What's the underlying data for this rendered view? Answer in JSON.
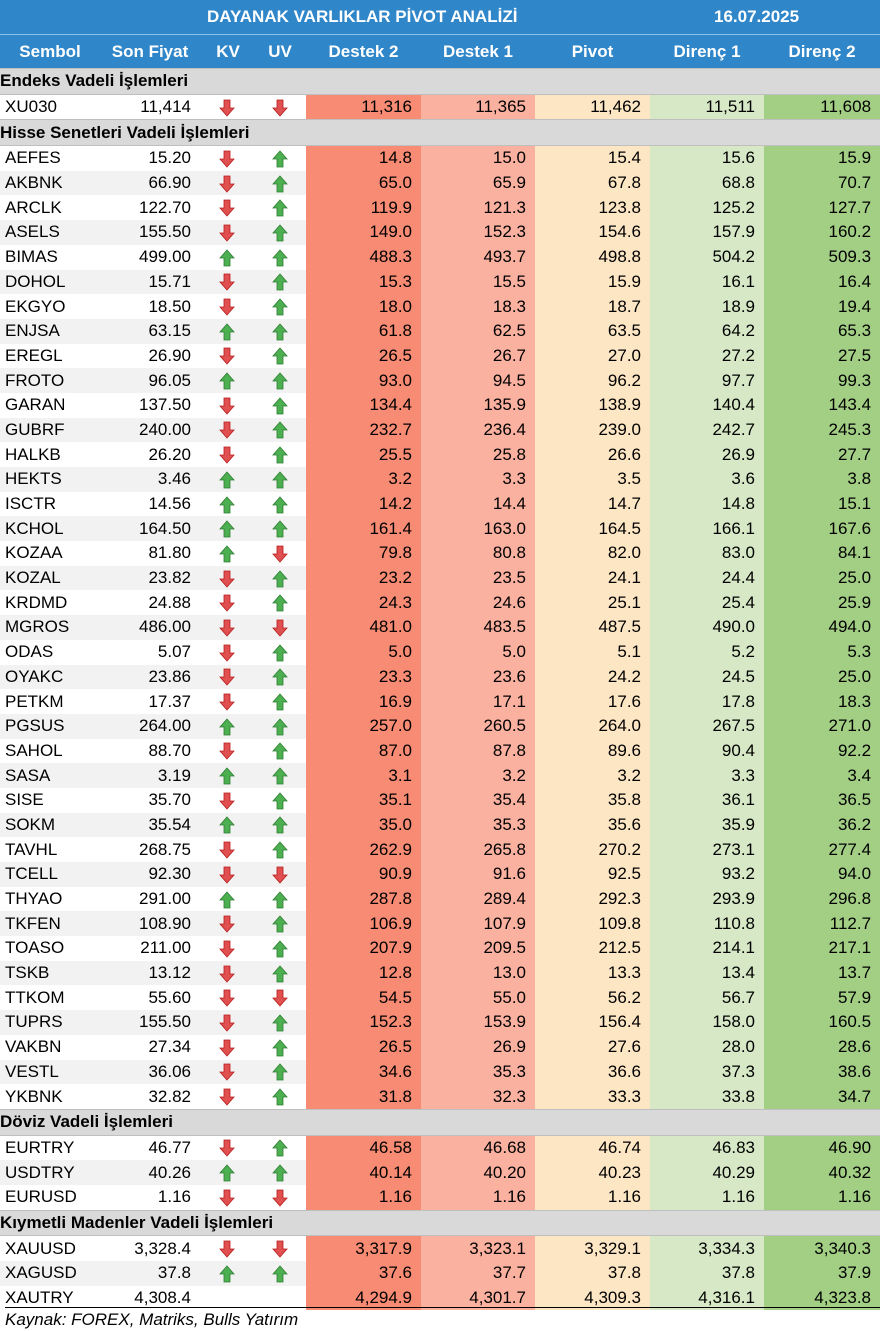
{
  "header": {
    "title": "DAYANAK VARLIKLAR PİVOT ANALİZİ",
    "date": "16.07.2025"
  },
  "columns": [
    "Sembol",
    "Son Fiyat",
    "KV",
    "UV",
    "Destek 2",
    "Destek 1",
    "Pivot",
    "Direnç 1",
    "Direnç 2"
  ],
  "colors": {
    "header_bg": "#2f86c9",
    "destek2": "#f78b73",
    "destek1": "#fbb1a0",
    "pivot": "#fde6c4",
    "direnc1": "#d6e8c6",
    "direnc2": "#a3cf85",
    "arrow_up": "#4caf50",
    "arrow_down": "#e05050"
  },
  "sections": [
    {
      "title": "Endeks Vadeli İşlemleri",
      "rows": [
        {
          "symbol": "XU030",
          "price": "11,414",
          "kv": "down",
          "uv": "down",
          "d2": "11,316",
          "d1": "11,365",
          "pivot": "11,462",
          "r1": "11,511",
          "r2": "11,608"
        }
      ]
    },
    {
      "title": "Hisse Senetleri Vadeli İşlemleri",
      "rows": [
        {
          "symbol": "AEFES",
          "price": "15.20",
          "kv": "down",
          "uv": "up",
          "d2": "14.8",
          "d1": "15.0",
          "pivot": "15.4",
          "r1": "15.6",
          "r2": "15.9"
        },
        {
          "symbol": "AKBNK",
          "price": "66.90",
          "kv": "down",
          "uv": "up",
          "d2": "65.0",
          "d1": "65.9",
          "pivot": "67.8",
          "r1": "68.8",
          "r2": "70.7"
        },
        {
          "symbol": "ARCLK",
          "price": "122.70",
          "kv": "down",
          "uv": "up",
          "d2": "119.9",
          "d1": "121.3",
          "pivot": "123.8",
          "r1": "125.2",
          "r2": "127.7"
        },
        {
          "symbol": "ASELS",
          "price": "155.50",
          "kv": "down",
          "uv": "up",
          "d2": "149.0",
          "d1": "152.3",
          "pivot": "154.6",
          "r1": "157.9",
          "r2": "160.2"
        },
        {
          "symbol": "BIMAS",
          "price": "499.00",
          "kv": "up",
          "uv": "up",
          "d2": "488.3",
          "d1": "493.7",
          "pivot": "498.8",
          "r1": "504.2",
          "r2": "509.3"
        },
        {
          "symbol": "DOHOL",
          "price": "15.71",
          "kv": "down",
          "uv": "up",
          "d2": "15.3",
          "d1": "15.5",
          "pivot": "15.9",
          "r1": "16.1",
          "r2": "16.4"
        },
        {
          "symbol": "EKGYO",
          "price": "18.50",
          "kv": "down",
          "uv": "up",
          "d2": "18.0",
          "d1": "18.3",
          "pivot": "18.7",
          "r1": "18.9",
          "r2": "19.4"
        },
        {
          "symbol": "ENJSA",
          "price": "63.15",
          "kv": "up",
          "uv": "up",
          "d2": "61.8",
          "d1": "62.5",
          "pivot": "63.5",
          "r1": "64.2",
          "r2": "65.3"
        },
        {
          "symbol": "EREGL",
          "price": "26.90",
          "kv": "down",
          "uv": "up",
          "d2": "26.5",
          "d1": "26.7",
          "pivot": "27.0",
          "r1": "27.2",
          "r2": "27.5"
        },
        {
          "symbol": "FROTO",
          "price": "96.05",
          "kv": "up",
          "uv": "up",
          "d2": "93.0",
          "d1": "94.5",
          "pivot": "96.2",
          "r1": "97.7",
          "r2": "99.3"
        },
        {
          "symbol": "GARAN",
          "price": "137.50",
          "kv": "down",
          "uv": "up",
          "d2": "134.4",
          "d1": "135.9",
          "pivot": "138.9",
          "r1": "140.4",
          "r2": "143.4"
        },
        {
          "symbol": "GUBRF",
          "price": "240.00",
          "kv": "down",
          "uv": "up",
          "d2": "232.7",
          "d1": "236.4",
          "pivot": "239.0",
          "r1": "242.7",
          "r2": "245.3"
        },
        {
          "symbol": "HALKB",
          "price": "26.20",
          "kv": "down",
          "uv": "up",
          "d2": "25.5",
          "d1": "25.8",
          "pivot": "26.6",
          "r1": "26.9",
          "r2": "27.7"
        },
        {
          "symbol": "HEKTS",
          "price": "3.46",
          "kv": "up",
          "uv": "up",
          "d2": "3.2",
          "d1": "3.3",
          "pivot": "3.5",
          "r1": "3.6",
          "r2": "3.8"
        },
        {
          "symbol": "ISCTR",
          "price": "14.56",
          "kv": "up",
          "uv": "up",
          "d2": "14.2",
          "d1": "14.4",
          "pivot": "14.7",
          "r1": "14.8",
          "r2": "15.1"
        },
        {
          "symbol": "KCHOL",
          "price": "164.50",
          "kv": "up",
          "uv": "up",
          "d2": "161.4",
          "d1": "163.0",
          "pivot": "164.5",
          "r1": "166.1",
          "r2": "167.6"
        },
        {
          "symbol": "KOZAA",
          "price": "81.80",
          "kv": "up",
          "uv": "down",
          "d2": "79.8",
          "d1": "80.8",
          "pivot": "82.0",
          "r1": "83.0",
          "r2": "84.1"
        },
        {
          "symbol": "KOZAL",
          "price": "23.82",
          "kv": "down",
          "uv": "up",
          "d2": "23.2",
          "d1": "23.5",
          "pivot": "24.1",
          "r1": "24.4",
          "r2": "25.0"
        },
        {
          "symbol": "KRDMD",
          "price": "24.88",
          "kv": "down",
          "uv": "up",
          "d2": "24.3",
          "d1": "24.6",
          "pivot": "25.1",
          "r1": "25.4",
          "r2": "25.9"
        },
        {
          "symbol": "MGROS",
          "price": "486.00",
          "kv": "down",
          "uv": "down",
          "d2": "481.0",
          "d1": "483.5",
          "pivot": "487.5",
          "r1": "490.0",
          "r2": "494.0"
        },
        {
          "symbol": "ODAS",
          "price": "5.07",
          "kv": "down",
          "uv": "up",
          "d2": "5.0",
          "d1": "5.0",
          "pivot": "5.1",
          "r1": "5.2",
          "r2": "5.3"
        },
        {
          "symbol": "OYAKC",
          "price": "23.86",
          "kv": "down",
          "uv": "up",
          "d2": "23.3",
          "d1": "23.6",
          "pivot": "24.2",
          "r1": "24.5",
          "r2": "25.0"
        },
        {
          "symbol": "PETKM",
          "price": "17.37",
          "kv": "down",
          "uv": "up",
          "d2": "16.9",
          "d1": "17.1",
          "pivot": "17.6",
          "r1": "17.8",
          "r2": "18.3"
        },
        {
          "symbol": "PGSUS",
          "price": "264.00",
          "kv": "up",
          "uv": "up",
          "d2": "257.0",
          "d1": "260.5",
          "pivot": "264.0",
          "r1": "267.5",
          "r2": "271.0"
        },
        {
          "symbol": "SAHOL",
          "price": "88.70",
          "kv": "down",
          "uv": "up",
          "d2": "87.0",
          "d1": "87.8",
          "pivot": "89.6",
          "r1": "90.4",
          "r2": "92.2"
        },
        {
          "symbol": "SASA",
          "price": "3.19",
          "kv": "up",
          "uv": "up",
          "d2": "3.1",
          "d1": "3.2",
          "pivot": "3.2",
          "r1": "3.3",
          "r2": "3.4"
        },
        {
          "symbol": "SISE",
          "price": "35.70",
          "kv": "down",
          "uv": "up",
          "d2": "35.1",
          "d1": "35.4",
          "pivot": "35.8",
          "r1": "36.1",
          "r2": "36.5"
        },
        {
          "symbol": "SOKM",
          "price": "35.54",
          "kv": "up",
          "uv": "up",
          "d2": "35.0",
          "d1": "35.3",
          "pivot": "35.6",
          "r1": "35.9",
          "r2": "36.2"
        },
        {
          "symbol": "TAVHL",
          "price": "268.75",
          "kv": "down",
          "uv": "up",
          "d2": "262.9",
          "d1": "265.8",
          "pivot": "270.2",
          "r1": "273.1",
          "r2": "277.4"
        },
        {
          "symbol": "TCELL",
          "price": "92.30",
          "kv": "down",
          "uv": "down",
          "d2": "90.9",
          "d1": "91.6",
          "pivot": "92.5",
          "r1": "93.2",
          "r2": "94.0"
        },
        {
          "symbol": "THYAO",
          "price": "291.00",
          "kv": "up",
          "uv": "up",
          "d2": "287.8",
          "d1": "289.4",
          "pivot": "292.3",
          "r1": "293.9",
          "r2": "296.8"
        },
        {
          "symbol": "TKFEN",
          "price": "108.90",
          "kv": "down",
          "uv": "up",
          "d2": "106.9",
          "d1": "107.9",
          "pivot": "109.8",
          "r1": "110.8",
          "r2": "112.7"
        },
        {
          "symbol": "TOASO",
          "price": "211.00",
          "kv": "down",
          "uv": "up",
          "d2": "207.9",
          "d1": "209.5",
          "pivot": "212.5",
          "r1": "214.1",
          "r2": "217.1"
        },
        {
          "symbol": "TSKB",
          "price": "13.12",
          "kv": "down",
          "uv": "up",
          "d2": "12.8",
          "d1": "13.0",
          "pivot": "13.3",
          "r1": "13.4",
          "r2": "13.7"
        },
        {
          "symbol": "TTKOM",
          "price": "55.60",
          "kv": "down",
          "uv": "down",
          "d2": "54.5",
          "d1": "55.0",
          "pivot": "56.2",
          "r1": "56.7",
          "r2": "57.9"
        },
        {
          "symbol": "TUPRS",
          "price": "155.50",
          "kv": "down",
          "uv": "up",
          "d2": "152.3",
          "d1": "153.9",
          "pivot": "156.4",
          "r1": "158.0",
          "r2": "160.5"
        },
        {
          "symbol": "VAKBN",
          "price": "27.34",
          "kv": "down",
          "uv": "up",
          "d2": "26.5",
          "d1": "26.9",
          "pivot": "27.6",
          "r1": "28.0",
          "r2": "28.6"
        },
        {
          "symbol": "VESTL",
          "price": "36.06",
          "kv": "down",
          "uv": "up",
          "d2": "34.6",
          "d1": "35.3",
          "pivot": "36.6",
          "r1": "37.3",
          "r2": "38.6"
        },
        {
          "symbol": "YKBNK",
          "price": "32.82",
          "kv": "down",
          "uv": "up",
          "d2": "31.8",
          "d1": "32.3",
          "pivot": "33.3",
          "r1": "33.8",
          "r2": "34.7"
        }
      ]
    },
    {
      "title": "Döviz Vadeli İşlemleri",
      "rows": [
        {
          "symbol": "EURTRY",
          "price": "46.77",
          "kv": "down",
          "uv": "up",
          "d2": "46.58",
          "d1": "46.68",
          "pivot": "46.74",
          "r1": "46.83",
          "r2": "46.90"
        },
        {
          "symbol": "USDTRY",
          "price": "40.26",
          "kv": "up",
          "uv": "up",
          "d2": "40.14",
          "d1": "40.20",
          "pivot": "40.23",
          "r1": "40.29",
          "r2": "40.32"
        },
        {
          "symbol": "EURUSD",
          "price": "1.16",
          "kv": "down",
          "uv": "down",
          "d2": "1.16",
          "d1": "1.16",
          "pivot": "1.16",
          "r1": "1.16",
          "r2": "1.16"
        }
      ]
    },
    {
      "title": "Kıymetli Madenler Vadeli İşlemleri",
      "rows": [
        {
          "symbol": "XAUUSD",
          "price": "3,328.4",
          "kv": "down",
          "uv": "down",
          "d2": "3,317.9",
          "d1": "3,323.1",
          "pivot": "3,329.1",
          "r1": "3,334.3",
          "r2": "3,340.3"
        },
        {
          "symbol": "XAGUSD",
          "price": "37.8",
          "kv": "up",
          "uv": "up",
          "d2": "37.6",
          "d1": "37.7",
          "pivot": "37.8",
          "r1": "37.8",
          "r2": "37.9"
        },
        {
          "symbol": "XAUTRY",
          "price": "4,308.4",
          "kv": "",
          "uv": "",
          "d2": "4,294.9",
          "d1": "4,301.7",
          "pivot": "4,309.3",
          "r1": "4,316.1",
          "r2": "4,323.8"
        }
      ]
    }
  ],
  "footer": "Kaynak: FOREX, Matriks, Bulls Yatırım"
}
